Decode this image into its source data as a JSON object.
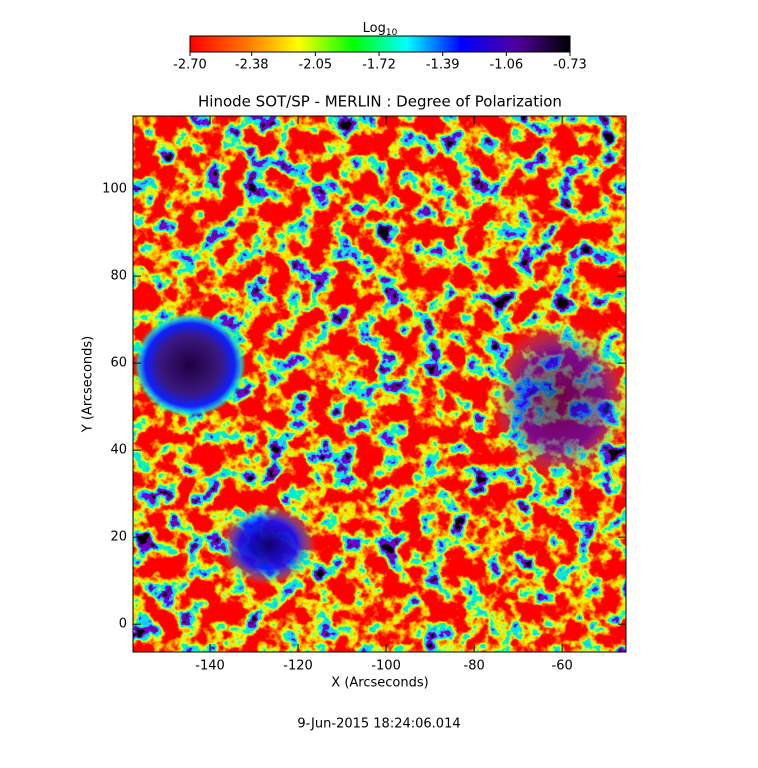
{
  "chart_data": {
    "type": "image",
    "title": "Hinode SOT/SP - MERLIN : Degree of Polarization",
    "xlabel": "X (Arcseconds)",
    "ylabel": "Y (Arcseconds)",
    "xlim": [
      -157.5,
      -45.5
    ],
    "ylim": [
      -6.4,
      116.8
    ],
    "xticks": [
      -140,
      -120,
      -100,
      -80,
      -60
    ],
    "yticks": [
      0,
      20,
      40,
      60,
      80,
      100
    ],
    "colorbar": {
      "label": {
        "base": "Log",
        "sub": "10"
      },
      "clim": [
        -2.7,
        -0.73
      ],
      "ticks": [
        {
          "value": -2.7,
          "label": "-2.70"
        },
        {
          "value": -2.38,
          "label": "-2.38"
        },
        {
          "value": -2.05,
          "label": "-2.05"
        },
        {
          "value": -1.72,
          "label": "-1.72"
        },
        {
          "value": -1.39,
          "label": "-1.39"
        },
        {
          "value": -1.06,
          "label": "-1.06"
        },
        {
          "value": -0.73,
          "label": "-0.73"
        }
      ],
      "colormap": [
        "#ff0000",
        "#ff7000",
        "#ffff00",
        "#00ff00",
        "#00ffff",
        "#0000ff",
        "#5000a0",
        "#000000"
      ]
    },
    "footer": "9-Jun-2015 18:24:06.014"
  }
}
